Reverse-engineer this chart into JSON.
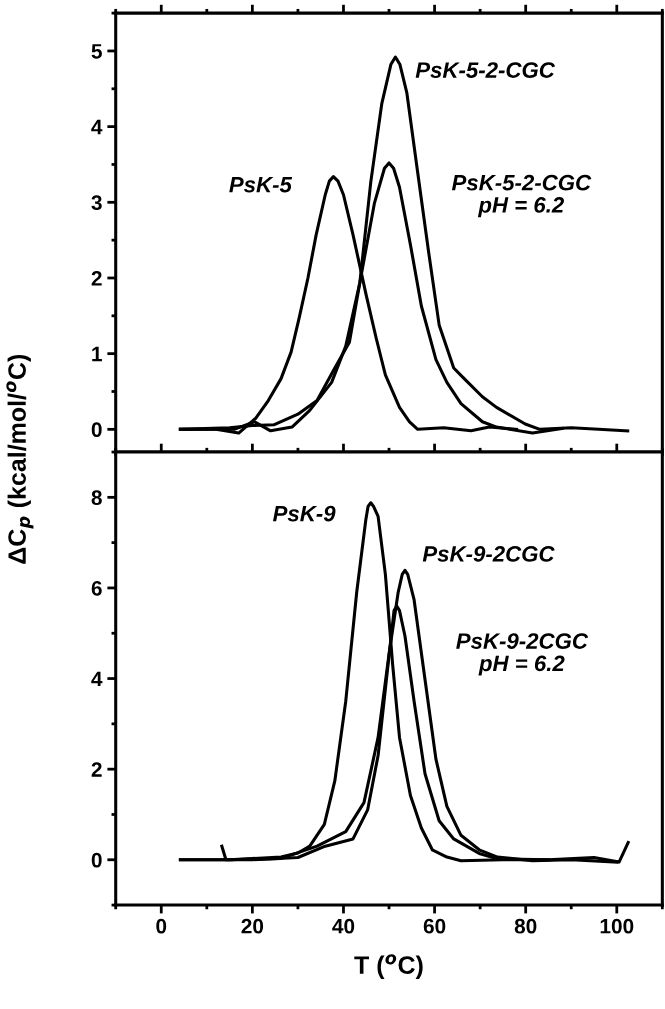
{
  "chart_data": [
    {
      "type": "line",
      "ylabel": "ΔC$_{p}$ (kcal/mol/$^{o}$C)",
      "xlim": [
        -10,
        110
      ],
      "xticks": [
        0,
        20,
        40,
        60,
        80,
        100
      ],
      "ylim": [
        -0.3,
        5.5
      ],
      "yticks": [
        0,
        1,
        2,
        3,
        4,
        5
      ],
      "tick_labels": "y",
      "grid": false,
      "legend": false,
      "marker": "none",
      "line_style": "solid",
      "series": [
        {
          "color": "#000000",
          "x": [
            4.2,
            12,
            17,
            20.8,
            23.5,
            26.3,
            28.5,
            30.3,
            32.2,
            34.0,
            36.0,
            36.9,
            37.8,
            38.8,
            40.0,
            42.1,
            45.0,
            47.2,
            49.2,
            52.3,
            54.5,
            56.3,
            62,
            68,
            72,
            78
          ],
          "values": [
            0,
            0,
            -0.05,
            0.15,
            0.38,
            0.67,
            1.02,
            1.48,
            2.0,
            2.57,
            3.1,
            3.28,
            3.34,
            3.28,
            3.1,
            2.57,
            1.77,
            1.2,
            0.72,
            0.29,
            0.1,
            0,
            0.02,
            -0.02,
            0.03,
            0
          ]
        },
        {
          "color": "#000000",
          "x": [
            4.2,
            15,
            20,
            24.7,
            30,
            34.2,
            38.1,
            41.3,
            43.6,
            46.0,
            48.4,
            50.4,
            51.4,
            52.4,
            53.9,
            56.3,
            58.7,
            61.0,
            64.2,
            66.5,
            70.5,
            73.6,
            79.9,
            83.1,
            90,
            96,
            102.4
          ],
          "values": [
            0,
            0.02,
            0.05,
            0.06,
            0.2,
            0.38,
            0.81,
            1.15,
            1.94,
            3.27,
            4.3,
            4.82,
            4.92,
            4.82,
            4.45,
            3.39,
            2.34,
            1.38,
            0.81,
            0.67,
            0.43,
            0.29,
            0.07,
            0,
            0.02,
            0,
            -0.02
          ]
        },
        {
          "color": "#000000",
          "x": [
            4.2,
            16,
            20.5,
            24,
            28.7,
            32.6,
            37.4,
            40.5,
            43.6,
            46.8,
            49.0,
            50.0,
            51.0,
            52.3,
            54.7,
            57.1,
            60.3,
            62.7,
            65.8,
            70.5,
            73.6,
            81.5,
            88
          ],
          "values": [
            0,
            0,
            0.1,
            -0.02,
            0.03,
            0.25,
            0.62,
            1.1,
            1.94,
            2.99,
            3.45,
            3.52,
            3.45,
            3.2,
            2.44,
            1.63,
            0.92,
            0.62,
            0.34,
            0.1,
            0.03,
            -0.05,
            0.01
          ]
        }
      ],
      "annotations": [
        "PsK-5",
        "PsK-5-2-CGC",
        "PsK-5-2-CGC\npH = 6.2"
      ]
    },
    {
      "type": "line",
      "xlabel": "T ($^{o}$C)",
      "xlim": [
        -10,
        110
      ],
      "xticks": [
        0,
        20,
        40,
        60,
        80,
        100
      ],
      "ylim": [
        -1,
        9
      ],
      "yticks": [
        0,
        2,
        4,
        6,
        8
      ],
      "grid": false,
      "legend": false,
      "marker": "none",
      "line_style": "solid",
      "series": [
        {
          "color": "#000000",
          "x": [
            4.2,
            15,
            26.3,
            30,
            32.6,
            35.8,
            38.1,
            40.5,
            42.9,
            44.9,
            45.4,
            46.0,
            46.6,
            47.6,
            49.2,
            50.8,
            52.3,
            54.7,
            57.1,
            59.5,
            62.7,
            65.8,
            75,
            85
          ],
          "values": [
            0,
            0,
            0.06,
            0.15,
            0.3,
            0.78,
            1.74,
            3.5,
            5.9,
            7.5,
            7.8,
            7.88,
            7.8,
            7.58,
            6.3,
            4.3,
            2.7,
            1.42,
            0.7,
            0.22,
            0.06,
            -0.02,
            0,
            0
          ]
        },
        {
          "color": "#000000",
          "x": [
            4.2,
            15,
            26.3,
            34.2,
            40.5,
            44.5,
            47.6,
            50.0,
            52.0,
            52.9,
            53.5,
            54.1,
            55.5,
            57.9,
            60.3,
            62.7,
            65.8,
            69.8,
            73.8,
            81.5,
            90,
            100
          ],
          "values": [
            0,
            0,
            0.03,
            0.3,
            0.62,
            1.26,
            2.7,
            4.54,
            5.9,
            6.3,
            6.39,
            6.3,
            5.74,
            3.98,
            2.22,
            1.18,
            0.54,
            0.22,
            0.06,
            -0.02,
            0,
            -0.05
          ]
        },
        {
          "color": "#000000",
          "x": [
            13.3,
            14.2,
            20,
            30,
            36,
            42.1,
            45.3,
            47.6,
            49.6,
            51.1,
            51.7,
            52.3,
            53.5,
            55.5,
            57.9,
            61.0,
            64.2,
            69.8,
            73.8,
            85,
            95,
            100.5,
            102.5
          ],
          "values": [
            0.3,
            0,
            0,
            0.05,
            0.3,
            0.46,
            1.1,
            2.3,
            4.14,
            5.5,
            5.6,
            5.5,
            4.94,
            3.5,
            1.9,
            0.86,
            0.46,
            0.14,
            0.02,
            0,
            0.05,
            -0.05,
            0.38
          ]
        }
      ],
      "annotations": [
        "PsK-9",
        "PsK-9-2CGC",
        "PsK-9-2CGC\npH = 6.2"
      ]
    }
  ]
}
